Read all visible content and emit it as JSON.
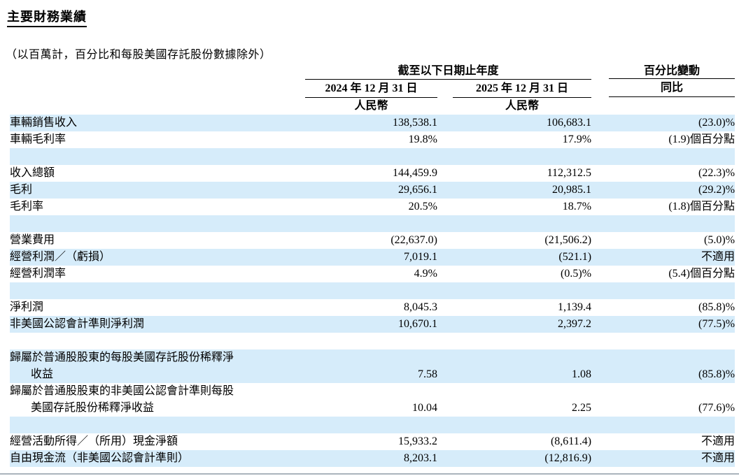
{
  "page": {
    "title": "主要財務業績",
    "subtitle": "（以百萬計，百分比和每股美國存託股份數據除外）"
  },
  "colors": {
    "row_highlight": "#d6ecfa",
    "text": "#000000",
    "rule_line": "#000000"
  },
  "table": {
    "header": {
      "period_group": "截至以下日期止年度",
      "change_group": "百分比變動",
      "col_2024": "2024 年 12 月 31 日",
      "col_2025": "2025 年 12 月 31 日",
      "col_yoy": "同比",
      "currency_2024": "人民幣",
      "currency_2025": "人民幣"
    },
    "rows": [
      {
        "label": "車輛銷售收入",
        "v2024": "138,538.1",
        "v2025": "106,683.1",
        "yoy": "(23.0)%"
      },
      {
        "label": "車輛毛利率",
        "v2024": "19.8%",
        "v2025": "17.9%",
        "yoy": "(1.9)個百分點"
      },
      {
        "label": "",
        "v2024": "",
        "v2025": "",
        "yoy": ""
      },
      {
        "label": "收入總額",
        "v2024": "144,459.9",
        "v2025": "112,312.5",
        "yoy": "(22.3)%"
      },
      {
        "label": "毛利",
        "v2024": "29,656.1",
        "v2025": "20,985.1",
        "yoy": "(29.2)%"
      },
      {
        "label": "毛利率",
        "v2024": "20.5%",
        "v2025": "18.7%",
        "yoy": "(1.8)個百分點"
      },
      {
        "label": "",
        "v2024": "",
        "v2025": "",
        "yoy": ""
      },
      {
        "label": "營業費用",
        "v2024": "(22,637.0)",
        "v2025": "(21,506.2)",
        "yoy": "(5.0)%"
      },
      {
        "label": "經營利潤／（虧損）",
        "v2024": "7,019.1",
        "v2025": "(521.1)",
        "yoy": "不適用"
      },
      {
        "label": "經營利潤率",
        "v2024": "4.9%",
        "v2025": "(0.5)%",
        "yoy": "(5.4)個百分點"
      },
      {
        "label": "",
        "v2024": "",
        "v2025": "",
        "yoy": ""
      },
      {
        "label": "淨利潤",
        "v2024": "8,045.3",
        "v2025": "1,139.4",
        "yoy": "(85.8)%"
      },
      {
        "label": "非美國公認會計準則淨利潤",
        "v2024": "10,670.1",
        "v2025": "2,397.2",
        "yoy": "(77.5)%"
      },
      {
        "label": "",
        "v2024": "",
        "v2025": "",
        "yoy": ""
      },
      {
        "label1": "歸屬於普通股股東的每股美國存託股份稀釋淨",
        "label2": "收益",
        "v2024": "7.58",
        "v2025": "1.08",
        "yoy": "(85.8)%"
      },
      {
        "label1": "歸屬於普通股股東的非美國公認會計準則每股",
        "label2": "美國存託股份稀釋淨收益",
        "v2024": "10.04",
        "v2025": "2.25",
        "yoy": "(77.6)%"
      },
      {
        "label": "",
        "v2024": "",
        "v2025": "",
        "yoy": ""
      },
      {
        "label": "經營活動所得／（所用）現金淨額",
        "v2024": "15,933.2",
        "v2025": "(8,611.4)",
        "yoy": "不適用"
      },
      {
        "label": "自由現金流（非美國公認會計準則）",
        "v2024": "8,203.1",
        "v2025": "(12,816.9)",
        "yoy": "不適用"
      }
    ]
  }
}
